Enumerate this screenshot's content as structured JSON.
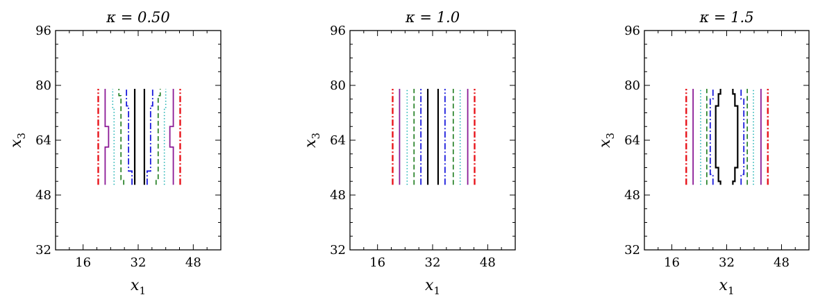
{
  "chart_data": [
    {
      "type": "line",
      "title": "κ = 0.50",
      "xlabel": "x1",
      "ylabel": "x3",
      "xlim": [
        8,
        56
      ],
      "ylim": [
        32,
        96
      ],
      "xticks": [
        16,
        32,
        48
      ],
      "yticks": [
        32,
        48,
        64,
        80,
        96
      ],
      "grid": false,
      "series": [
        {
          "color": "#e8141b",
          "style": "dashdot",
          "width": 2.4,
          "points": [
            [
              20.4,
              51
            ],
            [
              20.4,
              79
            ]
          ]
        },
        {
          "color": "#e8141b",
          "style": "dashdot",
          "width": 2.4,
          "points": [
            [
              44.2,
              51
            ],
            [
              44.2,
              79
            ]
          ]
        },
        {
          "color": "#8b1a96",
          "style": "solid",
          "width": 1.8,
          "points": [
            [
              22.4,
              51
            ],
            [
              22.4,
              62
            ],
            [
              23.4,
              62
            ],
            [
              23.4,
              68
            ],
            [
              22.4,
              68
            ],
            [
              22.4,
              79
            ]
          ]
        },
        {
          "color": "#8b1a96",
          "style": "solid",
          "width": 1.8,
          "points": [
            [
              42.2,
              51
            ],
            [
              42.2,
              62
            ],
            [
              41.2,
              62
            ],
            [
              41.2,
              68
            ],
            [
              42.2,
              68
            ],
            [
              42.2,
              79
            ]
          ]
        },
        {
          "color": "#20b3b3",
          "style": "dotted",
          "width": 1.6,
          "points": [
            [
              25.0,
              51
            ],
            [
              25.0,
              73
            ],
            [
              24.6,
              73
            ],
            [
              24.6,
              79
            ]
          ]
        },
        {
          "color": "#20b3b3",
          "style": "dotted",
          "width": 1.6,
          "points": [
            [
              39.6,
              51
            ],
            [
              39.6,
              73
            ],
            [
              40.0,
              73
            ],
            [
              40.0,
              79
            ]
          ]
        },
        {
          "color": "#1a7a1a",
          "style": "dashed",
          "width": 1.6,
          "points": [
            [
              27.8,
              51
            ],
            [
              27.8,
              52.5
            ],
            [
              27.0,
              52.5
            ],
            [
              27.0,
              77
            ],
            [
              26.4,
              77
            ],
            [
              26.4,
              79
            ]
          ]
        },
        {
          "color": "#1a7a1a",
          "style": "dashed",
          "width": 1.6,
          "points": [
            [
              37.2,
              51
            ],
            [
              37.2,
              52.5
            ],
            [
              37.8,
              52.5
            ],
            [
              37.8,
              77
            ],
            [
              38.4,
              77
            ],
            [
              38.4,
              79
            ]
          ]
        },
        {
          "color": "#1a1adc",
          "style": "dashdot",
          "width": 1.8,
          "points": [
            [
              30.2,
              51
            ],
            [
              30.2,
              55
            ],
            [
              29.2,
              55
            ],
            [
              29.2,
              74
            ],
            [
              28.6,
              74
            ],
            [
              28.6,
              79
            ]
          ]
        },
        {
          "color": "#1a1adc",
          "style": "dashdot",
          "width": 1.8,
          "points": [
            [
              34.6,
              51
            ],
            [
              34.6,
              55
            ],
            [
              35.6,
              55
            ],
            [
              35.6,
              74
            ],
            [
              36.2,
              74
            ],
            [
              36.2,
              79
            ]
          ]
        },
        {
          "color": "#000000",
          "style": "solid",
          "width": 2.2,
          "points": [
            [
              31.0,
              51
            ],
            [
              31.0,
              79
            ]
          ]
        },
        {
          "color": "#000000",
          "style": "solid",
          "width": 2.2,
          "points": [
            [
              33.8,
              51
            ],
            [
              33.8,
              79
            ]
          ]
        }
      ]
    },
    {
      "type": "line",
      "title": "κ = 1.0",
      "xlabel": "x1",
      "ylabel": "x3",
      "xlim": [
        8,
        56
      ],
      "ylim": [
        32,
        96
      ],
      "xticks": [
        16,
        32,
        48
      ],
      "yticks": [
        32,
        48,
        64,
        80,
        96
      ],
      "grid": false,
      "series": [
        {
          "color": "#e8141b",
          "style": "dashdot",
          "width": 2.4,
          "points": [
            [
              20.4,
              51
            ],
            [
              20.4,
              79
            ]
          ]
        },
        {
          "color": "#e8141b",
          "style": "dashdot",
          "width": 2.4,
          "points": [
            [
              44.2,
              51
            ],
            [
              44.2,
              79
            ]
          ]
        },
        {
          "color": "#8b1a96",
          "style": "solid",
          "width": 1.8,
          "points": [
            [
              22.4,
              51
            ],
            [
              22.4,
              79
            ]
          ]
        },
        {
          "color": "#8b1a96",
          "style": "solid",
          "width": 1.8,
          "points": [
            [
              42.2,
              51
            ],
            [
              42.2,
              79
            ]
          ]
        },
        {
          "color": "#20b3b3",
          "style": "dotted",
          "width": 1.6,
          "points": [
            [
              24.6,
              51
            ],
            [
              24.6,
              79
            ]
          ]
        },
        {
          "color": "#20b3b3",
          "style": "dotted",
          "width": 1.6,
          "points": [
            [
              40.0,
              51
            ],
            [
              40.0,
              79
            ]
          ]
        },
        {
          "color": "#1a7a1a",
          "style": "dashed",
          "width": 1.6,
          "points": [
            [
              26.6,
              51
            ],
            [
              26.6,
              79
            ]
          ]
        },
        {
          "color": "#1a7a1a",
          "style": "dashed",
          "width": 1.6,
          "points": [
            [
              38.0,
              51
            ],
            [
              38.0,
              79
            ]
          ]
        },
        {
          "color": "#1a1adc",
          "style": "dashdot",
          "width": 1.8,
          "points": [
            [
              28.6,
              51
            ],
            [
              28.6,
              79
            ]
          ]
        },
        {
          "color": "#1a1adc",
          "style": "dashdot",
          "width": 1.8,
          "points": [
            [
              35.6,
              51
            ],
            [
              35.6,
              79
            ]
          ]
        },
        {
          "color": "#000000",
          "style": "solid",
          "width": 2.2,
          "points": [
            [
              30.6,
              51
            ],
            [
              30.6,
              79
            ]
          ]
        },
        {
          "color": "#000000",
          "style": "solid",
          "width": 2.2,
          "points": [
            [
              33.6,
              51
            ],
            [
              33.6,
              79
            ]
          ]
        }
      ]
    },
    {
      "type": "line",
      "title": "κ = 1.5",
      "xlabel": "x1",
      "ylabel": "x3",
      "xlim": [
        8,
        56
      ],
      "ylim": [
        32,
        96
      ],
      "xticks": [
        16,
        32,
        48
      ],
      "yticks": [
        32,
        48,
        64,
        80,
        96
      ],
      "grid": false,
      "series": [
        {
          "color": "#e8141b",
          "style": "dashdot",
          "width": 2.4,
          "points": [
            [
              20.2,
              51
            ],
            [
              20.2,
              79
            ]
          ]
        },
        {
          "color": "#e8141b",
          "style": "dashdot",
          "width": 2.4,
          "points": [
            [
              44.0,
              51
            ],
            [
              44.0,
              79
            ]
          ]
        },
        {
          "color": "#8b1a96",
          "style": "solid",
          "width": 1.8,
          "points": [
            [
              22.2,
              51
            ],
            [
              22.2,
              79
            ]
          ]
        },
        {
          "color": "#8b1a96",
          "style": "solid",
          "width": 1.8,
          "points": [
            [
              42.0,
              51
            ],
            [
              42.0,
              79
            ]
          ]
        },
        {
          "color": "#20b3b3",
          "style": "dotted",
          "width": 1.6,
          "points": [
            [
              24.4,
              51
            ],
            [
              24.4,
              79
            ]
          ]
        },
        {
          "color": "#20b3b3",
          "style": "dotted",
          "width": 1.6,
          "points": [
            [
              39.8,
              51
            ],
            [
              39.8,
              79
            ]
          ]
        },
        {
          "color": "#1a7a1a",
          "style": "dashed",
          "width": 1.6,
          "points": [
            [
              26.2,
              51
            ],
            [
              26.2,
              79
            ]
          ]
        },
        {
          "color": "#1a7a1a",
          "style": "dashed",
          "width": 1.6,
          "points": [
            [
              38.0,
              51
            ],
            [
              38.0,
              79
            ]
          ]
        },
        {
          "color": "#1a1adc",
          "style": "dashdot",
          "width": 1.8,
          "points": [
            [
              28.0,
              51
            ],
            [
              28.0,
              54
            ],
            [
              27.2,
              54
            ],
            [
              27.2,
              76
            ],
            [
              28.0,
              76
            ],
            [
              28.0,
              79
            ]
          ]
        },
        {
          "color": "#1a1adc",
          "style": "dashdot",
          "width": 1.8,
          "points": [
            [
              36.2,
              51
            ],
            [
              36.2,
              54
            ],
            [
              37.0,
              54
            ],
            [
              37.0,
              76
            ],
            [
              36.2,
              76
            ],
            [
              36.2,
              79
            ]
          ]
        },
        {
          "color": "#000000",
          "style": "solid",
          "width": 2.2,
          "points": [
            [
              30.2,
              51
            ],
            [
              30.2,
              52
            ],
            [
              29.6,
              52
            ],
            [
              29.6,
              56
            ],
            [
              28.8,
              56
            ],
            [
              28.8,
              74
            ],
            [
              29.6,
              74
            ],
            [
              29.6,
              77.5
            ],
            [
              30.2,
              77.5
            ],
            [
              30.2,
              79
            ]
          ]
        },
        {
          "color": "#000000",
          "style": "solid",
          "width": 2.2,
          "points": [
            [
              33.8,
              51
            ],
            [
              33.8,
              52
            ],
            [
              34.4,
              52
            ],
            [
              34.4,
              56
            ],
            [
              35.2,
              56
            ],
            [
              35.2,
              74
            ],
            [
              34.4,
              74
            ],
            [
              34.4,
              77.5
            ],
            [
              33.8,
              77.5
            ],
            [
              33.8,
              79
            ]
          ]
        }
      ]
    }
  ]
}
